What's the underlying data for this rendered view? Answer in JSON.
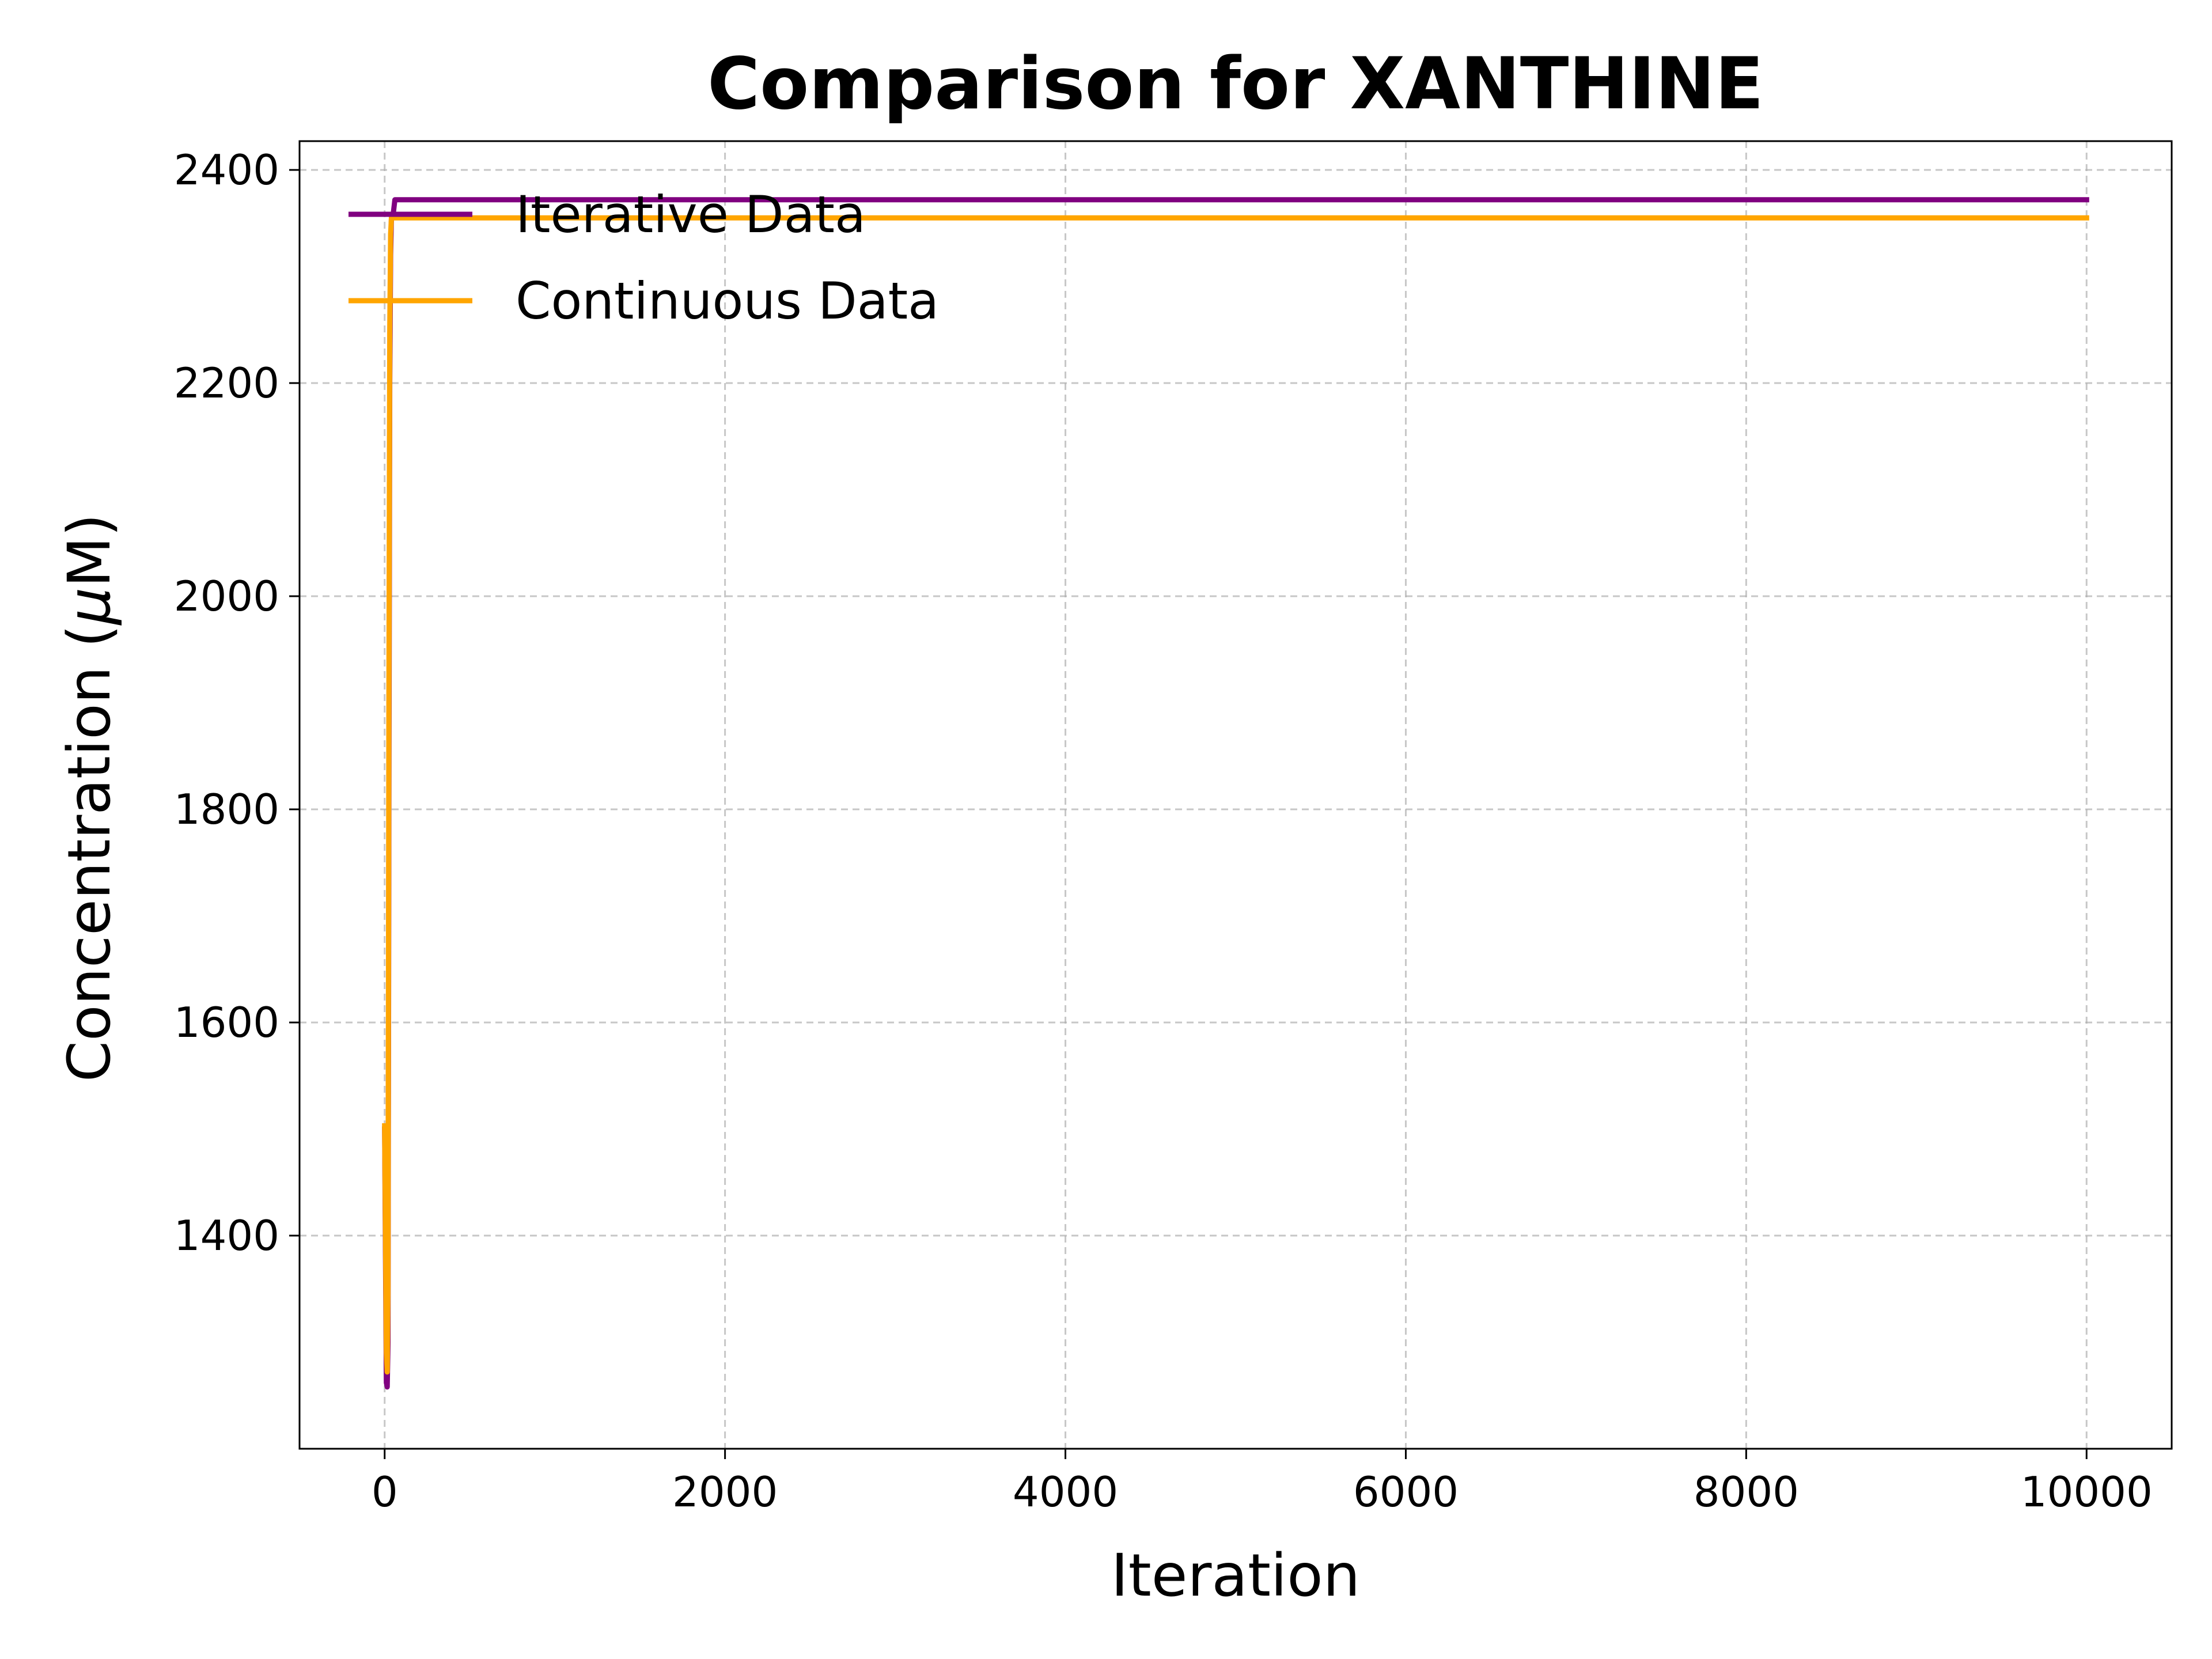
{
  "chart_data": {
    "type": "line",
    "title": "Comparison for XANTHINE",
    "xlabel": "Iteration",
    "ylabel_prefix": "Concentration (",
    "ylabel_mu": "μ",
    "ylabel_suffix": "M)",
    "xlim": [
      -500,
      10500
    ],
    "ylim": [
      1200,
      2427
    ],
    "xticks": [
      0,
      2000,
      4000,
      6000,
      8000,
      10000
    ],
    "yticks": [
      1400,
      1600,
      1800,
      2000,
      2200,
      2400
    ],
    "grid": true,
    "legend_position": "upper-left",
    "series": [
      {
        "name": "Iterative Data",
        "color": "#800080",
        "points": [
          [
            0,
            1500
          ],
          [
            5,
            1380
          ],
          [
            10,
            1262
          ],
          [
            15,
            1258
          ],
          [
            20,
            1300
          ],
          [
            25,
            1800
          ],
          [
            30,
            2200
          ],
          [
            35,
            2320
          ],
          [
            40,
            2355
          ],
          [
            50,
            2358
          ],
          [
            60,
            2372
          ],
          [
            10000,
            2372
          ]
        ]
      },
      {
        "name": "Continuous Data",
        "color": "#ffa500",
        "points": [
          [
            0,
            1503
          ],
          [
            5,
            1400
          ],
          [
            10,
            1290
          ],
          [
            15,
            1272
          ],
          [
            20,
            1350
          ],
          [
            25,
            1900
          ],
          [
            30,
            2250
          ],
          [
            35,
            2340
          ],
          [
            40,
            2355
          ],
          [
            10000,
            2355
          ]
        ]
      }
    ]
  }
}
